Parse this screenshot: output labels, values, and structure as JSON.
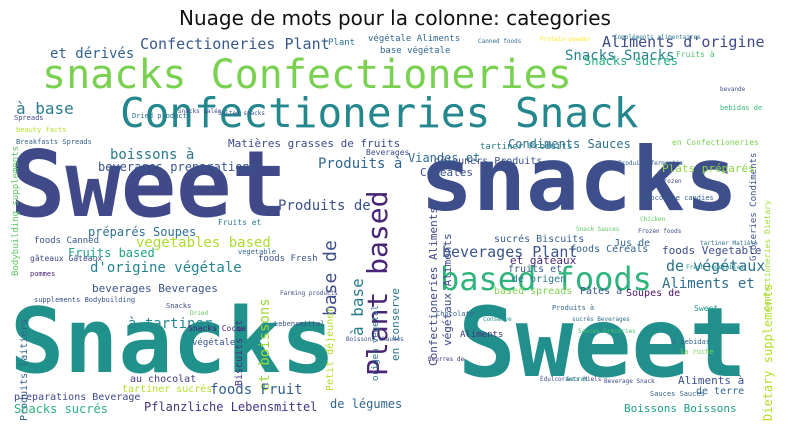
{
  "title": "Nuage de mots pour la colonne: categories",
  "words": [
    {
      "text": "Sweet",
      "color": "#404a88"
    },
    {
      "text": "snacks",
      "color": "#3d4e8a"
    },
    {
      "text": "Snacks",
      "color": "#21918c"
    },
    {
      "text": "Sweet",
      "color": "#21908d"
    },
    {
      "text": "snacks Confectioneries",
      "color": "#7ad151"
    },
    {
      "text": "Confectioneries Snack",
      "color": "#24878e"
    },
    {
      "text": "based foods",
      "color": "#2fb47c"
    },
    {
      "text": "Plant based",
      "color": "#482576"
    },
    {
      "text": "Confectioneries Plant",
      "color": "#38588c"
    },
    {
      "text": "Aliments d'origine",
      "color": "#3e4a89"
    },
    {
      "text": "Snacks Snacks",
      "color": "#26828e"
    },
    {
      "text": "et dérivés",
      "color": "#33638d"
    },
    {
      "text": "à base",
      "color": "#287c8e"
    },
    {
      "text": "boissons à",
      "color": "#2a788e"
    },
    {
      "text": "Produits à",
      "color": "#31678e"
    },
    {
      "text": "Produits de",
      "color": "#3c508b"
    },
    {
      "text": "base de",
      "color": "#3e4c8a"
    },
    {
      "text": "beverages Plant",
      "color": "#3a548c"
    },
    {
      "text": "de végétaux",
      "color": "#2c718e"
    },
    {
      "text": "vegetables based",
      "color": "#addc30"
    },
    {
      "text": "d'origine végétale",
      "color": "#25848e"
    },
    {
      "text": "à tartiner",
      "color": "#23898e"
    },
    {
      "text": "Aliments et",
      "color": "#2e6e8e"
    },
    {
      "text": "foods Fruit",
      "color": "#35608d"
    },
    {
      "text": "et boissons",
      "color": "#9bd93c"
    },
    {
      "text": "Plats préparés",
      "color": "#8ed645"
    },
    {
      "text": "Matières grasses de fruits",
      "color": "#3e4989"
    },
    {
      "text": "Condiments Sauces",
      "color": "#2d718e"
    },
    {
      "text": "Viandes et",
      "color": "#2f6c8e"
    },
    {
      "text": "Céréales et",
      "color": "#3b528b"
    },
    {
      "text": "Snacks sucrés",
      "color": "#2db27d"
    },
    {
      "text": "Pflanzliche Lebensmittel",
      "color": "#46327e"
    },
    {
      "text": "Boissons Boissons",
      "color": "#1f9e89"
    },
    {
      "text": "Dietary supplements",
      "color": "#b5de2b"
    },
    {
      "text": "de légumes",
      "color": "#31688e"
    },
    {
      "text": "et gâteaux",
      "color": "#482979"
    },
    {
      "text": "Fruits based",
      "color": "#20a386"
    },
    {
      "text": "préparés Soupes",
      "color": "#2c728e"
    },
    {
      "text": "beverages Beverages",
      "color": "#3b528b"
    },
    {
      "text": "beverages preparations",
      "color": "#39558c"
    },
    {
      "text": "Confectioneries Aliments",
      "color": "#3f4788"
    },
    {
      "text": "végétaux Aliments",
      "color": "#3e4a89"
    },
    {
      "text": "végétale Aliments",
      "color": "#30688e"
    },
    {
      "text": "base végétale",
      "color": "#31678e"
    },
    {
      "text": "Compléments alimentaires",
      "color": "#8bd646"
    },
    {
      "text": "en conserve",
      "color": "#2a788e"
    },
    {
      "text": "Produits laitiers",
      "color": "#33628d"
    },
    {
      "text": "Biscuits et",
      "color": "#46307e"
    },
    {
      "text": "au chocolat",
      "color": "#453781"
    },
    {
      "text": "tartiner sucrés",
      "color": "#b8de29"
    },
    {
      "text": "preparations Beverage",
      "color": "#3f4889"
    },
    {
      "text": "Snacks sucrés",
      "color": "#25ac82"
    },
    {
      "text": "foods Vegetable",
      "color": "#3e4c8a"
    },
    {
      "text": "Pâtes à",
      "color": "#3a538b"
    },
    {
      "text": "Soupes de",
      "color": "#471365"
    },
    {
      "text": "de terre",
      "color": "#30698e"
    },
    {
      "text": "fruits et",
      "color": "#38598c"
    },
    {
      "text": "de origen",
      "color": "#2a768e"
    },
    {
      "text": "foods Cereals",
      "color": "#33638d"
    },
    {
      "text": "based spreads",
      "color": "#7fd34e"
    },
    {
      "text": "sucrés Biscuits",
      "color": "#355f8d"
    },
    {
      "text": "Jus de",
      "color": "#31688e"
    },
    {
      "text": "déjeuners Produits",
      "color": "#3b528b"
    },
    {
      "text": "Bodybuilding supplements",
      "color": "#5ec962"
    },
    {
      "text": "Confectioneries Dietary",
      "color": "#a2da37"
    },
    {
      "text": "tartiner Produits",
      "color": "#287d8e"
    },
    {
      "text": "Plant",
      "color": "#2c718e"
    },
    {
      "text": "Fruits à",
      "color": "#4ac16d"
    },
    {
      "text": "bebidas de",
      "color": "#35b779"
    },
    {
      "text": "Snacks Cocoa",
      "color": "#482173"
    },
    {
      "text": "foods Fresh",
      "color": "#3b528b"
    },
    {
      "text": "Fruits et",
      "color": "#2a788e"
    },
    {
      "text": "foods Canned",
      "color": "#39568c"
    },
    {
      "text": "gâteaux Gâteaux",
      "color": "#3e4a89"
    },
    {
      "text": "en Confectioneries",
      "color": "#7ad151"
    },
    {
      "text": "végétale",
      "color": "#3b528b"
    },
    {
      "text": "Aliments",
      "color": "#46337e"
    },
    {
      "text": "Sweet",
      "color": "#1f988b"
    },
    {
      "text": "Beverages",
      "color": "#3e4c8a"
    },
    {
      "text": "Dried products",
      "color": "#2c728e"
    },
    {
      "text": "beauty facts",
      "color": "#b5de2b"
    },
    {
      "text": "Breakfasts Spreads",
      "color": "#33638d"
    },
    {
      "text": "Chocolate candies",
      "color": "#34618d"
    },
    {
      "text": "Frozen foods",
      "color": "#3e4a89"
    },
    {
      "text": "Lebensmittel",
      "color": "#3c4f8a"
    },
    {
      "text": "Chocolate",
      "color": "#33638d"
    },
    {
      "text": "Canned foods",
      "color": "#2e6e8e"
    },
    {
      "text": "sucrés Beverages",
      "color": "#2d708e"
    },
    {
      "text": "Sauces Groceries",
      "color": "#4ac16d"
    },
    {
      "text": "Snack Sauces",
      "color": "#5ec962"
    },
    {
      "text": "Spreads",
      "color": "#3f4889"
    },
    {
      "text": "vegetable",
      "color": "#31688e"
    },
    {
      "text": "pommes",
      "color": "#481f70"
    },
    {
      "text": "la ruche",
      "color": "#7ad151"
    },
    {
      "text": "y bebidas",
      "color": "#33638d"
    },
    {
      "text": "Snacks",
      "color": "#404688"
    },
    {
      "text": "origen vegetal",
      "color": "#2c728e"
    },
    {
      "text": "Petit déjeuner",
      "color": "#b5de2b"
    },
    {
      "text": "Sauces Sauces",
      "color": "#33638d"
    },
    {
      "text": "supplements Bodybuilding",
      "color": "#3b528b"
    },
    {
      "text": "Protein powder",
      "color": "#fde725"
    },
    {
      "text": "Fresh vegetables",
      "color": "#21918c"
    },
    {
      "text": "Édulcorants Miels",
      "color": "#3e4989"
    },
    {
      "text": "Beurres de",
      "color": "#472f7d"
    },
    {
      "text": "Boissons chaudes",
      "color": "#3b528b"
    },
    {
      "text": "Snacks salés",
      "color": "#3e4a89"
    },
    {
      "text": "Sucres",
      "color": "#1f988b"
    },
    {
      "text": "Groceries Condiments",
      "color": "#3b528b"
    },
    {
      "text": "Dried",
      "color": "#5ec962"
    },
    {
      "text": "Beverage Snack",
      "color": "#3e4a89"
    },
    {
      "text": "Produits fermentés",
      "color": "#35608d"
    },
    {
      "text": "Frozen",
      "color": "#3e4a89"
    },
    {
      "text": "en conserve",
      "color": "#21918c"
    },
    {
      "text": "Chicken",
      "color": "#5ec962"
    },
    {
      "text": "tartiner Matière",
      "color": "#2c728e"
    },
    {
      "text": "Salted snacks",
      "color": "#3b528b"
    },
    {
      "text": "Farming products",
      "color": "#3e4989"
    },
    {
      "text": "Aliments à",
      "color": "#3c508b"
    },
    {
      "text": "bevande",
      "color": "#3b528b"
    },
    {
      "text": "Produits à",
      "color": "#31688e"
    }
  ]
}
